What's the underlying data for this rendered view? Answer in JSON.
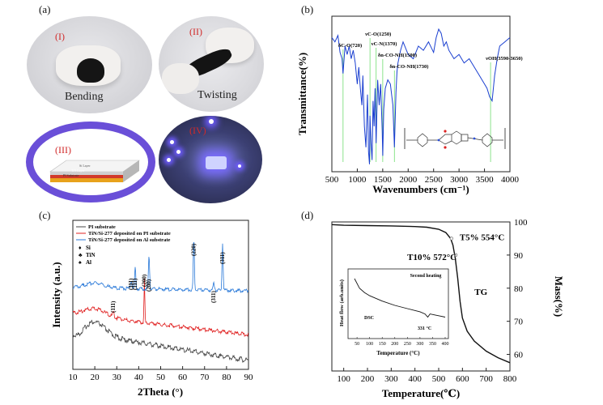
{
  "panels": {
    "a": {
      "label": "(a)",
      "photos": [
        {
          "numeral": "(I)",
          "caption": "Bending"
        },
        {
          "numeral": "(II)",
          "caption": "Twisting"
        },
        {
          "numeral": "(III)",
          "layers": [
            "Si Layer",
            "TiN Layer",
            "PI Substrate"
          ]
        },
        {
          "numeral": "(IV)"
        }
      ]
    },
    "b": {
      "label": "(b)"
    },
    "c": {
      "label": "(c)"
    },
    "d": {
      "label": "(d)"
    }
  },
  "chart_data": [
    {
      "id": "b",
      "type": "line",
      "xlabel": "Wavenumbers (cm⁻¹)",
      "ylabel": "Transmittance(%)",
      "xlim": [
        500,
        4000
      ],
      "xticks": [
        "500",
        "1000",
        "1500",
        "2000",
        "2500",
        "3000",
        "3500",
        "4000"
      ],
      "series": [
        {
          "color": "#1a3fd0",
          "x": [
            500,
            560,
            620,
            660,
            700,
            720,
            760,
            800,
            840,
            880,
            920,
            960,
            1000,
            1030,
            1060,
            1090,
            1110,
            1140,
            1170,
            1200,
            1220,
            1240,
            1250,
            1270,
            1290,
            1310,
            1330,
            1350,
            1370,
            1400,
            1430,
            1460,
            1490,
            1500,
            1520,
            1550,
            1600,
            1650,
            1700,
            1730,
            1760,
            1780,
            1800,
            1850,
            1900,
            2000,
            2100,
            2200,
            2300,
            2400,
            2500,
            2550,
            2600,
            2650,
            2700,
            2750,
            2800,
            2900,
            3000,
            3100,
            3200,
            3300,
            3400,
            3500,
            3550,
            3600,
            3650,
            3700,
            3750,
            3800,
            3900,
            4000
          ],
          "y": [
            62,
            60,
            63,
            55,
            52,
            45,
            58,
            54,
            58,
            52,
            56,
            50,
            40,
            48,
            38,
            30,
            44,
            20,
            10,
            35,
            8,
            2,
            25,
            12,
            4,
            32,
            20,
            38,
            12,
            42,
            30,
            40,
            18,
            6,
            28,
            38,
            42,
            40,
            30,
            10,
            36,
            46,
            50,
            56,
            60,
            54,
            52,
            58,
            56,
            60,
            55,
            62,
            66,
            64,
            58,
            60,
            56,
            52,
            54,
            50,
            52,
            48,
            44,
            40,
            38,
            34,
            32,
            44,
            52,
            58,
            60,
            62
          ]
        }
      ],
      "annotations": [
        {
          "text": "δC-O(720)",
          "x": 720
        },
        {
          "text": "νC-O(1250)",
          "x": 1250
        },
        {
          "text": "νC-N(1370)",
          "x": 1370
        },
        {
          "text": "δn-CO-NH(1500)",
          "x": 1500
        },
        {
          "text": "δn-CO-NH(1730)",
          "x": 1730
        },
        {
          "text": "νOH(3590-3650)",
          "x": 3620
        }
      ]
    },
    {
      "id": "c",
      "type": "line",
      "xlabel": "2Theta (°)",
      "ylabel": "Intensity (a.u.)",
      "xlim": [
        10,
        90
      ],
      "xticks": [
        "10",
        "20",
        "30",
        "40",
        "50",
        "60",
        "70",
        "80",
        "90"
      ],
      "series": [
        {
          "name": "PI substrate",
          "color": "#444444"
        },
        {
          "name": "TiN/Si-277 deposited on PI substrate",
          "color": "#e02020"
        },
        {
          "name": "TiN/Si-277 deposited on Al substrate",
          "color": "#2878d8"
        }
      ],
      "legend_symbols": [
        {
          "symbol": "♦",
          "label": "Si"
        },
        {
          "symbol": "♣",
          "label": "TiN"
        },
        {
          "symbol": "♠",
          "label": "Al"
        }
      ],
      "peaks": [
        {
          "label": "(111)",
          "x": 28.4
        },
        {
          "label": "(111)",
          "x": 36.6
        },
        {
          "label": "(111)",
          "x": 38.4
        },
        {
          "label": "(200)",
          "x": 42.6
        },
        {
          "label": "(200)",
          "x": 44.7
        },
        {
          "label": "(220)",
          "x": 65.1
        },
        {
          "label": "(311)",
          "x": 74.2
        },
        {
          "label": "(311)",
          "x": 78.2
        }
      ]
    },
    {
      "id": "d",
      "type": "line",
      "xlabel": "Temperature(℃)",
      "ylabel": "Mass(%)",
      "xlim": [
        50,
        800
      ],
      "ylim": [
        55,
        100
      ],
      "xticks": [
        "100",
        "200",
        "300",
        "400",
        "500",
        "600",
        "700",
        "800"
      ],
      "yticks": [
        "60",
        "70",
        "80",
        "90",
        "100"
      ],
      "series": [
        {
          "name": "TG",
          "color": "#111111",
          "x": [
            50,
            100,
            200,
            300,
            400,
            450,
            500,
            530,
            550,
            560,
            570,
            580,
            590,
            600,
            620,
            650,
            700,
            750,
            800
          ],
          "y": [
            99.2,
            99.0,
            98.9,
            98.8,
            98.6,
            98.4,
            97.8,
            96.8,
            95,
            93,
            89,
            83,
            76,
            71,
            67,
            64,
            61,
            59,
            57.5
          ]
        }
      ],
      "annotations": [
        {
          "text": "T5% 554°C",
          "x": 554,
          "y": 95
        },
        {
          "text": "T10% 572°C",
          "x": 572,
          "y": 90
        },
        {
          "text": "TG",
          "x": 610,
          "y": 79
        }
      ],
      "inset": {
        "xlabel": "Temperature (°C)",
        "ylabel": "Heat flow (arb.units)",
        "title": "Second heating",
        "series_label": "DSC",
        "annotation": "331 °C",
        "xticks": [
          "50",
          "100",
          "150",
          "200",
          "250",
          "300",
          "350",
          "400"
        ],
        "x": [
          40,
          60,
          80,
          100,
          150,
          200,
          250,
          300,
          320,
          331,
          340,
          360,
          380,
          400
        ],
        "y": [
          1.0,
          0.82,
          0.74,
          0.68,
          0.58,
          0.5,
          0.44,
          0.38,
          0.34,
          0.28,
          0.34,
          0.32,
          0.3,
          0.28
        ]
      }
    }
  ]
}
